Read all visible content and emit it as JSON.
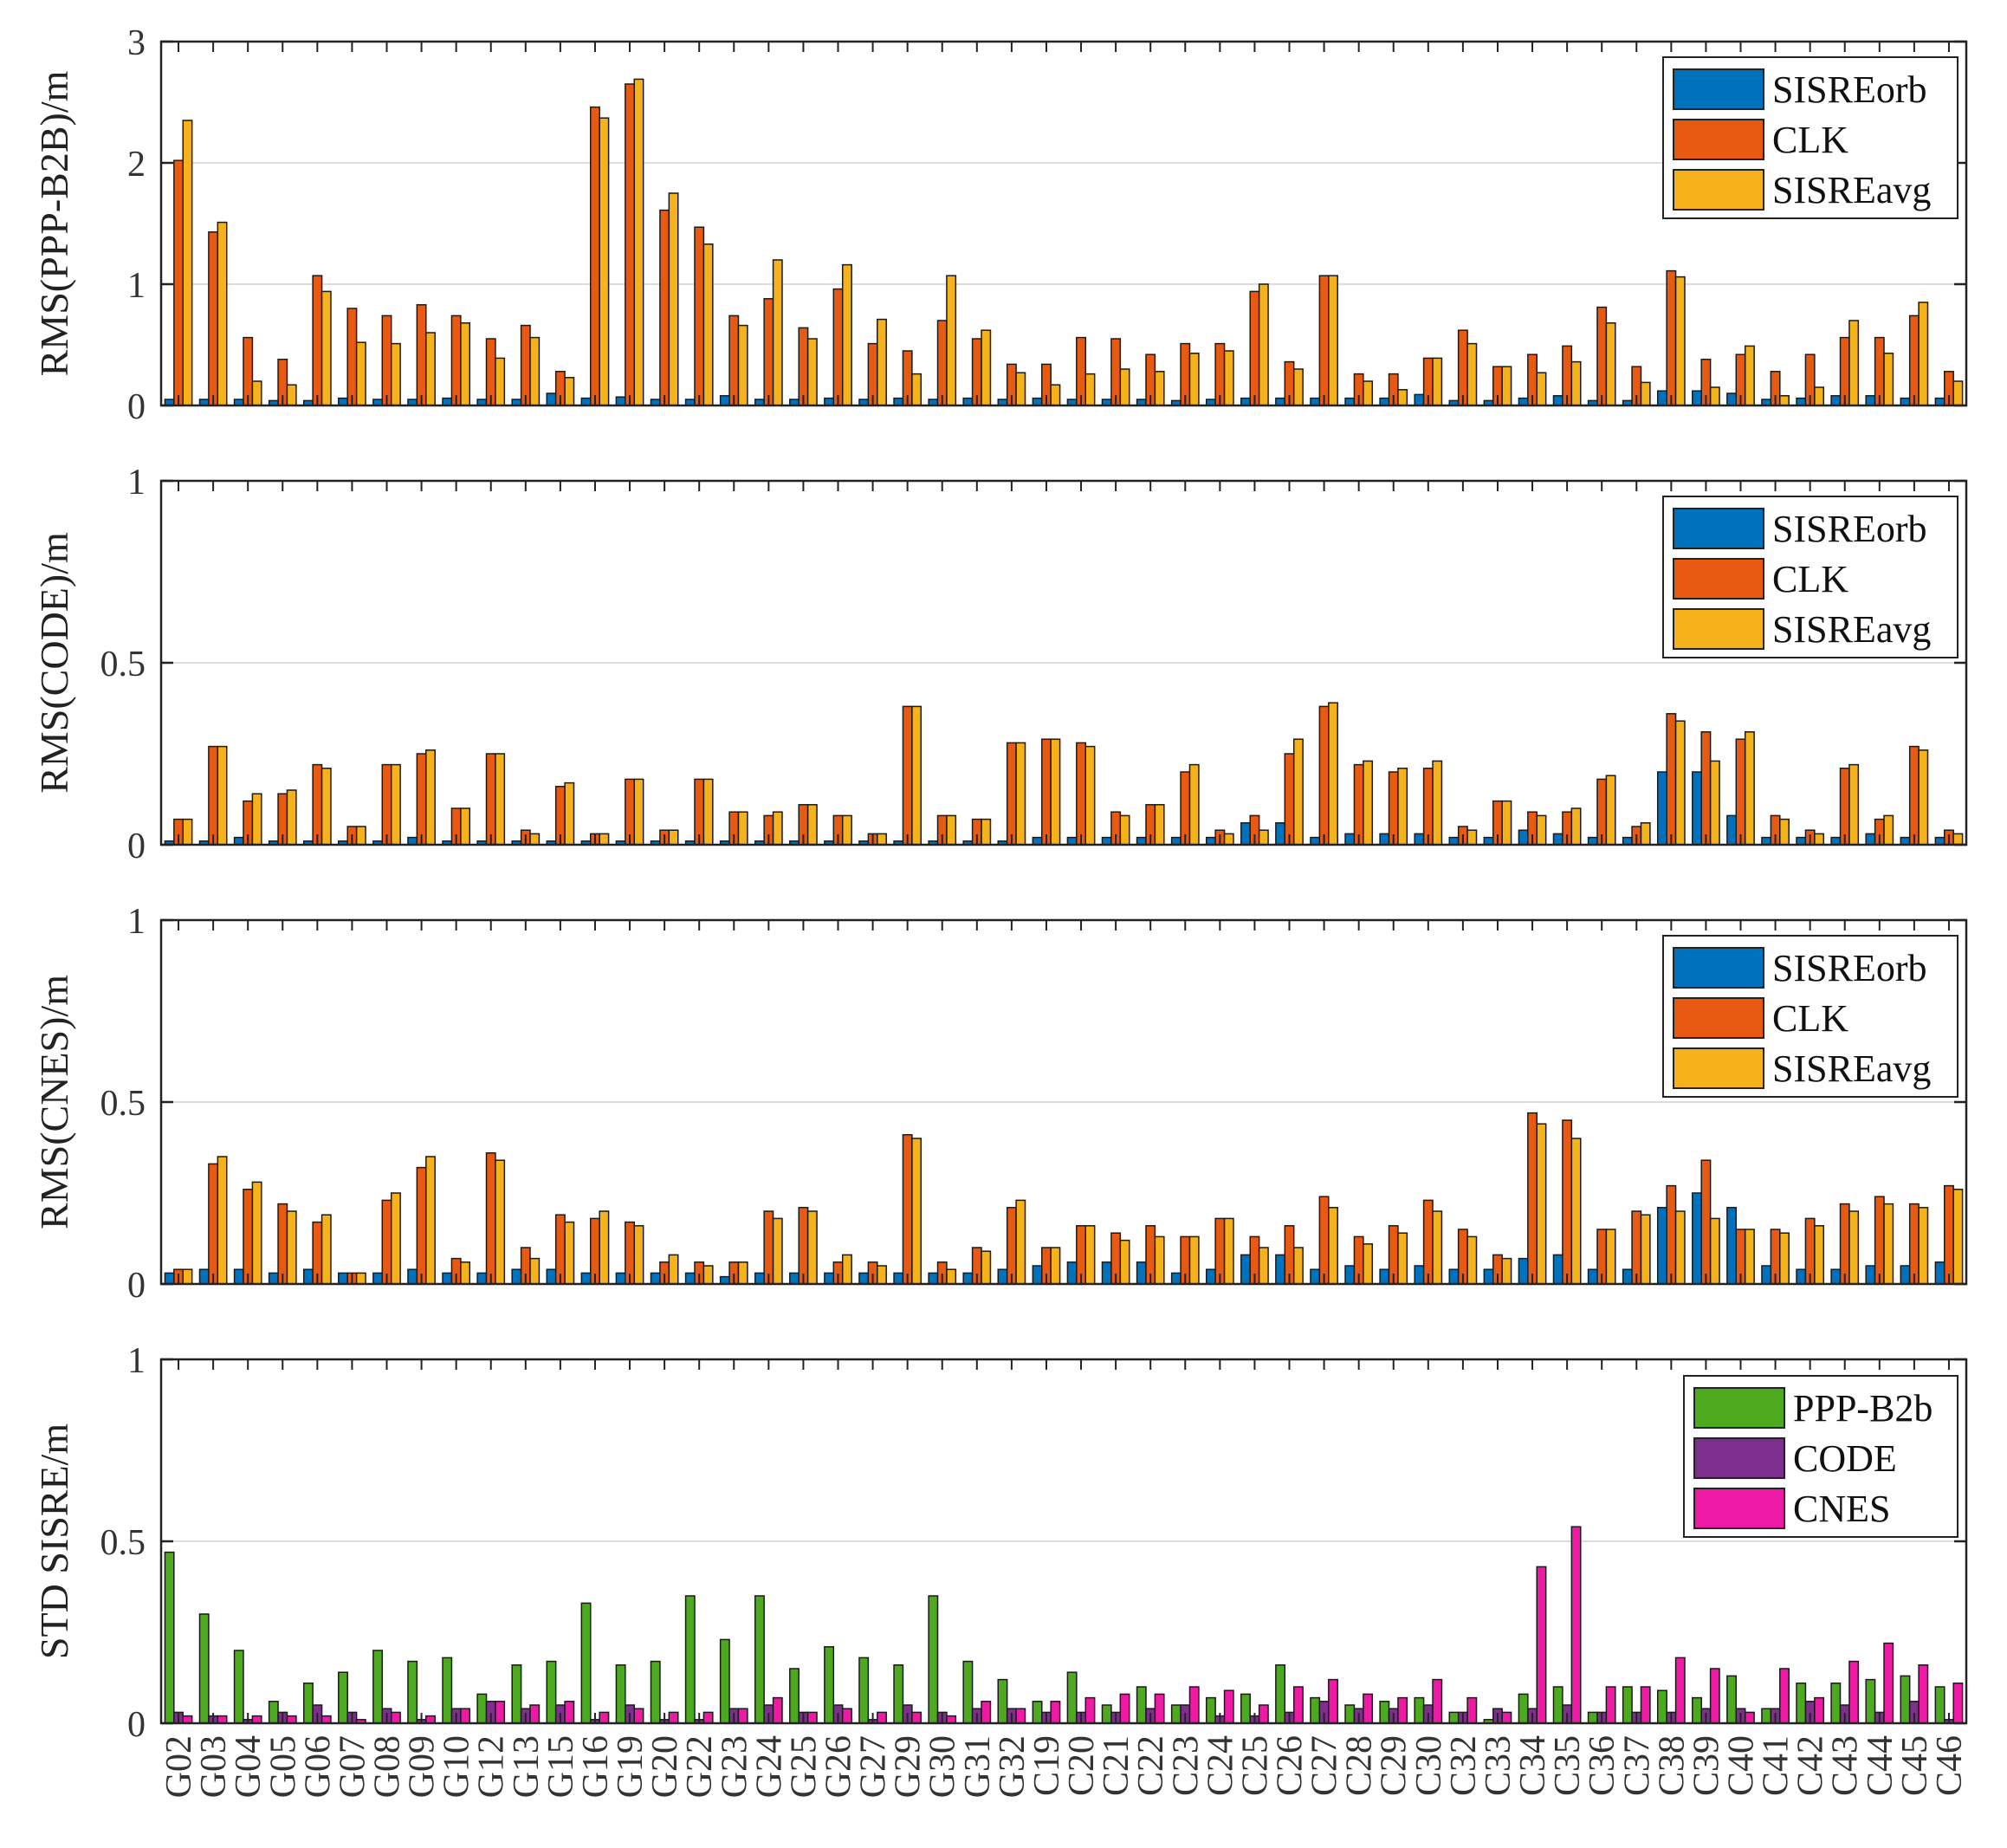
{
  "figure": {
    "colors": {
      "SISREorb": "#0072BD",
      "CLK": "#E85A12",
      "SISREavg": "#F5B21B",
      "PPP-B2b": "#4DAA1E",
      "CODE": "#7E2F8E",
      "CNES": "#EE1AA5"
    }
  },
  "chart_data": [
    {
      "type": "bar",
      "ylabel": "RMS(PPP-B2B)/m",
      "ylim": [
        0,
        3
      ],
      "yticks": [
        0,
        1,
        2,
        3
      ],
      "ytick_labels": [
        "0",
        "1",
        "2",
        "3"
      ],
      "legend": [
        "SISREorb",
        "CLK",
        "SISREavg"
      ],
      "legend_placement": "top-right",
      "categories": [
        "G02",
        "G03",
        "G04",
        "G05",
        "G06",
        "G07",
        "G08",
        "G09",
        "G10",
        "G12",
        "G13",
        "G15",
        "G16",
        "G19",
        "G20",
        "G22",
        "G23",
        "G24",
        "G25",
        "G26",
        "G27",
        "G29",
        "G30",
        "G31",
        "G32",
        "C19",
        "C20",
        "C21",
        "C22",
        "C23",
        "C24",
        "C25",
        "C26",
        "C27",
        "C28",
        "C29",
        "C30",
        "C32",
        "C33",
        "C34",
        "C35",
        "C36",
        "C37",
        "C38",
        "C39",
        "C40",
        "C41",
        "C42",
        "C43",
        "C44",
        "C45",
        "C46"
      ],
      "series": [
        {
          "name": "SISREorb",
          "values": [
            0.05,
            0.05,
            0.05,
            0.04,
            0.04,
            0.06,
            0.05,
            0.05,
            0.06,
            0.05,
            0.05,
            0.1,
            0.06,
            0.07,
            0.05,
            0.05,
            0.08,
            0.05,
            0.05,
            0.06,
            0.05,
            0.06,
            0.05,
            0.06,
            0.05,
            0.06,
            0.05,
            0.05,
            0.05,
            0.04,
            0.05,
            0.06,
            0.06,
            0.06,
            0.06,
            0.06,
            0.09,
            0.04,
            0.04,
            0.06,
            0.08,
            0.04,
            0.04,
            0.12,
            0.12,
            0.1,
            0.05,
            0.06,
            0.08,
            0.08,
            0.06,
            0.06
          ]
        },
        {
          "name": "CLK",
          "values": [
            2.02,
            1.43,
            0.56,
            0.38,
            1.07,
            0.8,
            0.74,
            0.83,
            0.74,
            0.55,
            0.66,
            0.28,
            2.46,
            2.65,
            1.61,
            1.47,
            0.74,
            0.88,
            0.64,
            0.96,
            0.51,
            0.45,
            0.7,
            0.55,
            0.34,
            0.34,
            0.56,
            0.55,
            0.42,
            0.51,
            0.51,
            0.94,
            0.36,
            1.07,
            0.26,
            0.26,
            0.39,
            0.62,
            0.32,
            0.42,
            0.49,
            0.81,
            0.32,
            1.11,
            0.38,
            0.42,
            0.28,
            0.42,
            0.56,
            0.56,
            0.74,
            0.28
          ]
        },
        {
          "name": "SISREavg",
          "values": [
            2.35,
            1.51,
            0.2,
            0.17,
            0.94,
            0.52,
            0.51,
            0.6,
            0.68,
            0.39,
            0.56,
            0.23,
            2.37,
            2.69,
            1.75,
            1.33,
            0.66,
            1.2,
            0.55,
            1.16,
            0.71,
            0.26,
            1.07,
            0.62,
            0.27,
            0.17,
            0.26,
            0.3,
            0.28,
            0.43,
            0.45,
            1.0,
            0.3,
            1.07,
            0.2,
            0.13,
            0.39,
            0.51,
            0.32,
            0.27,
            0.36,
            0.68,
            0.19,
            1.06,
            0.15,
            0.49,
            0.08,
            0.15,
            0.7,
            0.43,
            0.85,
            0.2
          ]
        }
      ]
    },
    {
      "type": "bar",
      "ylabel": "RMS(CODE)/m",
      "ylim": [
        0,
        1
      ],
      "yticks": [
        0,
        0.5,
        1
      ],
      "ytick_labels": [
        "0",
        "0.5",
        "1"
      ],
      "legend": [
        "SISREorb",
        "CLK",
        "SISREavg"
      ],
      "legend_placement": "top-right",
      "categories": [
        "G02",
        "G03",
        "G04",
        "G05",
        "G06",
        "G07",
        "G08",
        "G09",
        "G10",
        "G12",
        "G13",
        "G15",
        "G16",
        "G19",
        "G20",
        "G22",
        "G23",
        "G24",
        "G25",
        "G26",
        "G27",
        "G29",
        "G30",
        "G31",
        "G32",
        "C19",
        "C20",
        "C21",
        "C22",
        "C23",
        "C24",
        "C25",
        "C26",
        "C27",
        "C28",
        "C29",
        "C30",
        "C32",
        "C33",
        "C34",
        "C35",
        "C36",
        "C37",
        "C38",
        "C39",
        "C40",
        "C41",
        "C42",
        "C43",
        "C44",
        "C45",
        "C46"
      ],
      "series": [
        {
          "name": "SISREorb",
          "values": [
            0.01,
            0.01,
            0.02,
            0.01,
            0.01,
            0.01,
            0.01,
            0.02,
            0.01,
            0.01,
            0.01,
            0.01,
            0.01,
            0.01,
            0.01,
            0.01,
            0.01,
            0.01,
            0.01,
            0.01,
            0.01,
            0.01,
            0.01,
            0.01,
            0.01,
            0.02,
            0.02,
            0.02,
            0.02,
            0.02,
            0.02,
            0.06,
            0.06,
            0.02,
            0.03,
            0.03,
            0.03,
            0.02,
            0.02,
            0.04,
            0.03,
            0.02,
            0.02,
            0.2,
            0.2,
            0.08,
            0.02,
            0.02,
            0.02,
            0.03,
            0.02,
            0.02
          ]
        },
        {
          "name": "CLK",
          "values": [
            0.07,
            0.27,
            0.12,
            0.14,
            0.22,
            0.05,
            0.22,
            0.25,
            0.1,
            0.25,
            0.04,
            0.16,
            0.03,
            0.18,
            0.04,
            0.18,
            0.09,
            0.08,
            0.11,
            0.08,
            0.03,
            0.38,
            0.08,
            0.07,
            0.28,
            0.29,
            0.28,
            0.09,
            0.11,
            0.2,
            0.04,
            0.08,
            0.25,
            0.38,
            0.22,
            0.2,
            0.21,
            0.05,
            0.12,
            0.09,
            0.09,
            0.18,
            0.05,
            0.36,
            0.31,
            0.29,
            0.08,
            0.04,
            0.21,
            0.07,
            0.27,
            0.04
          ]
        },
        {
          "name": "SISREavg",
          "values": [
            0.07,
            0.27,
            0.14,
            0.15,
            0.21,
            0.05,
            0.22,
            0.26,
            0.1,
            0.25,
            0.03,
            0.17,
            0.03,
            0.18,
            0.04,
            0.18,
            0.09,
            0.09,
            0.11,
            0.08,
            0.03,
            0.38,
            0.08,
            0.07,
            0.28,
            0.29,
            0.27,
            0.08,
            0.11,
            0.22,
            0.03,
            0.04,
            0.29,
            0.39,
            0.23,
            0.21,
            0.23,
            0.04,
            0.12,
            0.08,
            0.1,
            0.19,
            0.06,
            0.34,
            0.23,
            0.31,
            0.07,
            0.03,
            0.22,
            0.08,
            0.26,
            0.03
          ]
        }
      ]
    },
    {
      "type": "bar",
      "ylabel": "RMS(CNES)/m",
      "ylim": [
        0,
        1
      ],
      "yticks": [
        0,
        0.5,
        1
      ],
      "ytick_labels": [
        "0",
        "0.5",
        "1"
      ],
      "legend": [
        "SISREorb",
        "CLK",
        "SISREavg"
      ],
      "legend_placement": "top-right",
      "categories": [
        "G02",
        "G03",
        "G04",
        "G05",
        "G06",
        "G07",
        "G08",
        "G09",
        "G10",
        "G12",
        "G13",
        "G15",
        "G16",
        "G19",
        "G20",
        "G22",
        "G23",
        "G24",
        "G25",
        "G26",
        "G27",
        "G29",
        "G30",
        "G31",
        "G32",
        "C19",
        "C20",
        "C21",
        "C22",
        "C23",
        "C24",
        "C25",
        "C26",
        "C27",
        "C28",
        "C29",
        "C30",
        "C32",
        "C33",
        "C34",
        "C35",
        "C36",
        "C37",
        "C38",
        "C39",
        "C40",
        "C41",
        "C42",
        "C43",
        "C44",
        "C45",
        "C46"
      ],
      "series": [
        {
          "name": "SISREorb",
          "values": [
            0.03,
            0.04,
            0.04,
            0.03,
            0.04,
            0.03,
            0.03,
            0.04,
            0.03,
            0.03,
            0.04,
            0.04,
            0.03,
            0.03,
            0.03,
            0.03,
            0.02,
            0.03,
            0.03,
            0.03,
            0.03,
            0.03,
            0.03,
            0.03,
            0.04,
            0.05,
            0.06,
            0.06,
            0.06,
            0.03,
            0.04,
            0.08,
            0.08,
            0.04,
            0.05,
            0.04,
            0.05,
            0.04,
            0.04,
            0.07,
            0.08,
            0.04,
            0.04,
            0.21,
            0.25,
            0.21,
            0.05,
            0.04,
            0.04,
            0.05,
            0.05,
            0.06
          ]
        },
        {
          "name": "CLK",
          "values": [
            0.04,
            0.33,
            0.26,
            0.22,
            0.17,
            0.03,
            0.23,
            0.32,
            0.07,
            0.36,
            0.1,
            0.19,
            0.18,
            0.17,
            0.06,
            0.06,
            0.06,
            0.2,
            0.21,
            0.06,
            0.06,
            0.41,
            0.06,
            0.1,
            0.21,
            0.1,
            0.16,
            0.14,
            0.16,
            0.13,
            0.18,
            0.13,
            0.16,
            0.24,
            0.13,
            0.16,
            0.23,
            0.15,
            0.08,
            0.47,
            0.45,
            0.15,
            0.2,
            0.27,
            0.34,
            0.15,
            0.15,
            0.18,
            0.22,
            0.24,
            0.22,
            0.27
          ]
        },
        {
          "name": "SISREavg",
          "values": [
            0.04,
            0.35,
            0.28,
            0.2,
            0.19,
            0.03,
            0.25,
            0.35,
            0.06,
            0.34,
            0.07,
            0.17,
            0.2,
            0.16,
            0.08,
            0.05,
            0.06,
            0.18,
            0.2,
            0.08,
            0.05,
            0.4,
            0.04,
            0.09,
            0.23,
            0.1,
            0.16,
            0.12,
            0.13,
            0.13,
            0.18,
            0.1,
            0.1,
            0.21,
            0.11,
            0.14,
            0.2,
            0.13,
            0.07,
            0.44,
            0.4,
            0.15,
            0.19,
            0.2,
            0.18,
            0.15,
            0.14,
            0.16,
            0.2,
            0.22,
            0.21,
            0.26
          ]
        }
      ]
    },
    {
      "type": "bar",
      "ylabel": "STD SISRE/m",
      "ylim": [
        0,
        1
      ],
      "yticks": [
        0,
        0.5,
        1
      ],
      "ytick_labels": [
        "0",
        "0.5",
        "1"
      ],
      "legend": [
        "PPP-B2b",
        "CODE",
        "CNES"
      ],
      "legend_placement": "top-right",
      "categories": [
        "G02",
        "G03",
        "G04",
        "G05",
        "G06",
        "G07",
        "G08",
        "G09",
        "G10",
        "G12",
        "G13",
        "G15",
        "G16",
        "G19",
        "G20",
        "G22",
        "G23",
        "G24",
        "G25",
        "G26",
        "G27",
        "G29",
        "G30",
        "G31",
        "G32",
        "C19",
        "C20",
        "C21",
        "C22",
        "C23",
        "C24",
        "C25",
        "C26",
        "C27",
        "C28",
        "C29",
        "C30",
        "C32",
        "C33",
        "C34",
        "C35",
        "C36",
        "C37",
        "C38",
        "C39",
        "C40",
        "C41",
        "C42",
        "C43",
        "C44",
        "C45",
        "C46"
      ],
      "series": [
        {
          "name": "PPP-B2b",
          "values": [
            0.47,
            0.3,
            0.2,
            0.06,
            0.11,
            0.14,
            0.2,
            0.17,
            0.18,
            0.08,
            0.16,
            0.17,
            0.33,
            0.16,
            0.17,
            0.35,
            0.23,
            0.35,
            0.15,
            0.21,
            0.18,
            0.16,
            0.35,
            0.17,
            0.12,
            0.06,
            0.14,
            0.05,
            0.1,
            0.05,
            0.07,
            0.08,
            0.16,
            0.07,
            0.05,
            0.06,
            0.07,
            0.03,
            0.01,
            0.08,
            0.1,
            0.03,
            0.1,
            0.09,
            0.07,
            0.13,
            0.04,
            0.11,
            0.11,
            0.12,
            0.13,
            0.1
          ]
        },
        {
          "name": "CODE",
          "values": [
            0.03,
            0.02,
            0.01,
            0.03,
            0.05,
            0.03,
            0.04,
            0.01,
            0.04,
            0.06,
            0.04,
            0.05,
            0.01,
            0.05,
            0.01,
            0.01,
            0.04,
            0.05,
            0.03,
            0.05,
            0.01,
            0.05,
            0.03,
            0.04,
            0.04,
            0.03,
            0.03,
            0.03,
            0.04,
            0.05,
            0.02,
            0.02,
            0.03,
            0.06,
            0.04,
            0.04,
            0.05,
            0.03,
            0.04,
            0.04,
            0.05,
            0.03,
            0.03,
            0.03,
            0.04,
            0.04,
            0.04,
            0.06,
            0.05,
            0.03,
            0.06,
            0.01
          ]
        },
        {
          "name": "CNES",
          "values": [
            0.02,
            0.02,
            0.02,
            0.02,
            0.02,
            0.01,
            0.03,
            0.02,
            0.04,
            0.06,
            0.05,
            0.06,
            0.03,
            0.04,
            0.03,
            0.03,
            0.04,
            0.07,
            0.03,
            0.04,
            0.03,
            0.03,
            0.02,
            0.06,
            0.04,
            0.06,
            0.07,
            0.08,
            0.08,
            0.1,
            0.09,
            0.05,
            0.1,
            0.12,
            0.08,
            0.07,
            0.12,
            0.07,
            0.03,
            0.43,
            0.54,
            0.1,
            0.1,
            0.18,
            0.15,
            0.03,
            0.15,
            0.07,
            0.17,
            0.22,
            0.16,
            0.11
          ]
        }
      ]
    }
  ]
}
